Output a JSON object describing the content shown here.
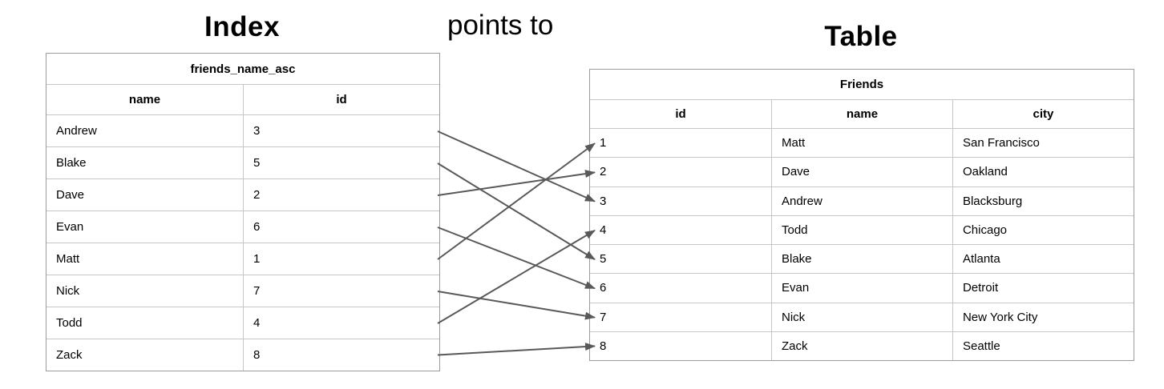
{
  "titles": {
    "index": "Index",
    "points_to": "points to",
    "table": "Table"
  },
  "index_table": {
    "title": "friends_name_asc",
    "columns": [
      "name",
      "id"
    ],
    "rows": [
      {
        "name": "Andrew",
        "id": "3"
      },
      {
        "name": "Blake",
        "id": "5"
      },
      {
        "name": "Dave",
        "id": "2"
      },
      {
        "name": "Evan",
        "id": "6"
      },
      {
        "name": "Matt",
        "id": "1"
      },
      {
        "name": "Nick",
        "id": "7"
      },
      {
        "name": "Todd",
        "id": "4"
      },
      {
        "name": "Zack",
        "id": "8"
      }
    ]
  },
  "friends_table": {
    "title": "Friends",
    "columns": [
      "id",
      "name",
      "city"
    ],
    "rows": [
      {
        "id": "1",
        "name": "Matt",
        "city": "San Francisco"
      },
      {
        "id": "2",
        "name": "Dave",
        "city": "Oakland"
      },
      {
        "id": "3",
        "name": "Andrew",
        "city": "Blacksburg"
      },
      {
        "id": "4",
        "name": "Todd",
        "city": "Chicago"
      },
      {
        "id": "5",
        "name": "Blake",
        "city": "Atlanta"
      },
      {
        "id": "6",
        "name": "Evan",
        "city": "Detroit"
      },
      {
        "id": "7",
        "name": "Nick",
        "city": "New York City"
      },
      {
        "id": "8",
        "name": "Zack",
        "city": "Seattle"
      }
    ]
  },
  "arrows": [
    {
      "from_name": "Andrew",
      "to_id": "3"
    },
    {
      "from_name": "Blake",
      "to_id": "5"
    },
    {
      "from_name": "Dave",
      "to_id": "2"
    },
    {
      "from_name": "Evan",
      "to_id": "6"
    },
    {
      "from_name": "Matt",
      "to_id": "1"
    },
    {
      "from_name": "Nick",
      "to_id": "7"
    },
    {
      "from_name": "Todd",
      "to_id": "4"
    },
    {
      "from_name": "Zack",
      "to_id": "8"
    }
  ],
  "colors": {
    "arrow": "#595959",
    "border_outer": "#9b9b9b",
    "border_inner": "#c6c6c6",
    "text": "#000000"
  }
}
